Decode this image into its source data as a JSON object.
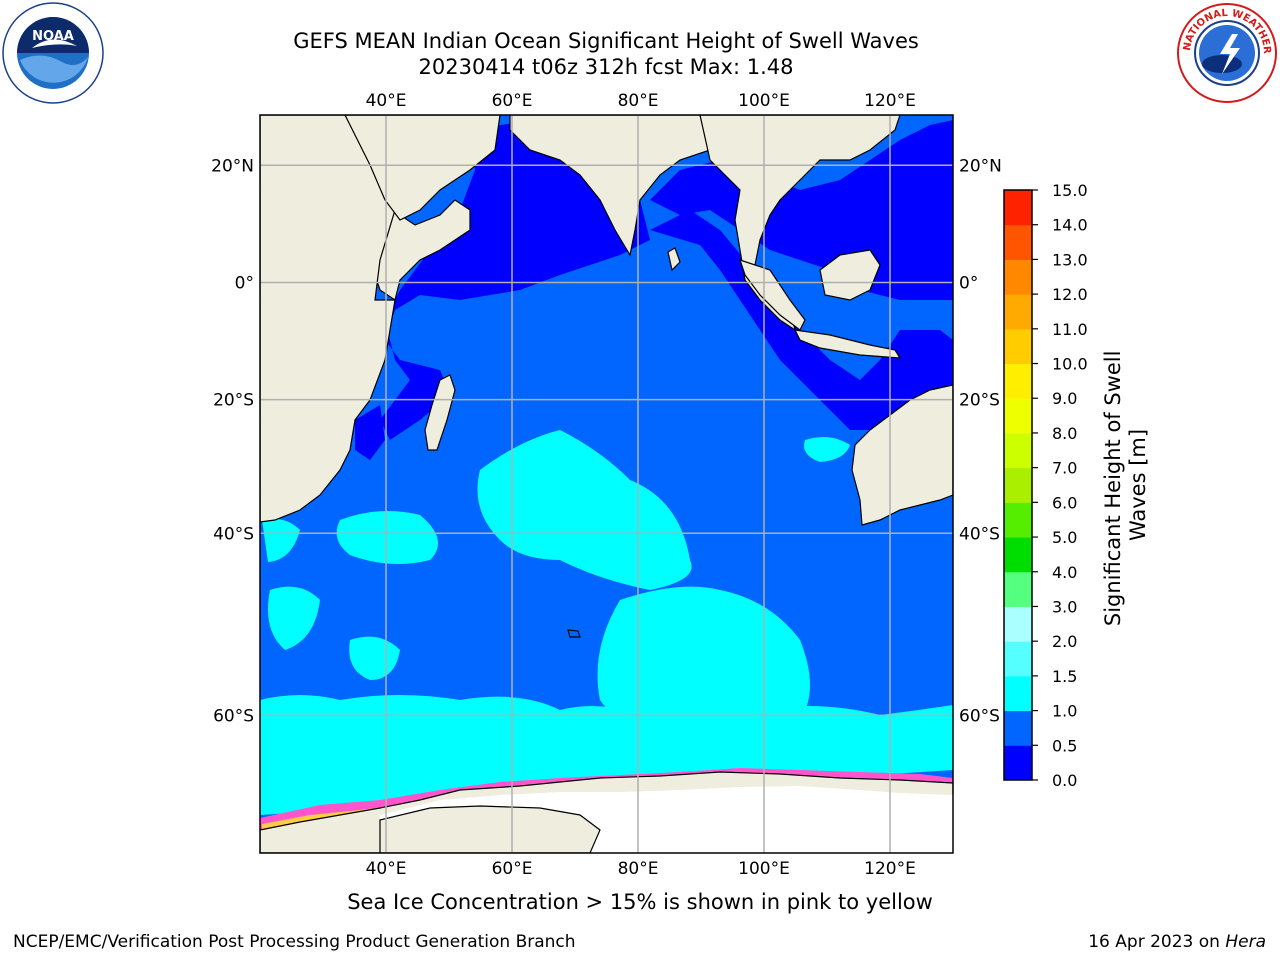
{
  "title_line1": "GEFS MEAN Indian Ocean Significant Height of Swell Waves",
  "title_line2": "20230414 t06z 312h fcst   Max: 1.48",
  "map": {
    "region": "Indian Ocean",
    "lon_range": [
      20,
      130
    ],
    "lat_range": [
      -70,
      28
    ],
    "lon_ticks": [
      "40°E",
      "60°E",
      "80°E",
      "100°E",
      "120°E"
    ],
    "lat_ticks": [
      "20°N",
      "0°",
      "20°S",
      "40°S",
      "60°S"
    ],
    "colors": {
      "land": "#eeedde",
      "ice_region": "#ffffff",
      "grid": "#b0b0b0"
    }
  },
  "colorbar": {
    "label": "Significant Height of Swell Waves [m]",
    "ticks": [
      "0.0",
      "0.5",
      "1.0",
      "1.5",
      "2.0",
      "3.0",
      "4.0",
      "5.0",
      "6.0",
      "7.0",
      "8.0",
      "9.0",
      "10.0",
      "11.0",
      "12.0",
      "13.0",
      "14.0",
      "15.0"
    ],
    "colors": [
      "#0000ff",
      "#0066ff",
      "#00ffff",
      "#55ffff",
      "#aaffff",
      "#55ff80",
      "#00dd00",
      "#55ee00",
      "#aaee00",
      "#ccff00",
      "#eeff00",
      "#ffee00",
      "#ffcc00",
      "#ffaa00",
      "#ff8800",
      "#ff5500",
      "#ff2200"
    ]
  },
  "sea_ice_note": "Sea Ice Concentration > 15% is shown in pink to yellow",
  "footer": {
    "credit": "NCEP/EMC/Verification Post Processing Product Generation Branch",
    "date": "16 Apr 2023 on",
    "host": "Hera"
  },
  "logos": {
    "noaa": "NOAA",
    "nws": "NATIONAL WEATHER SERVICE"
  }
}
